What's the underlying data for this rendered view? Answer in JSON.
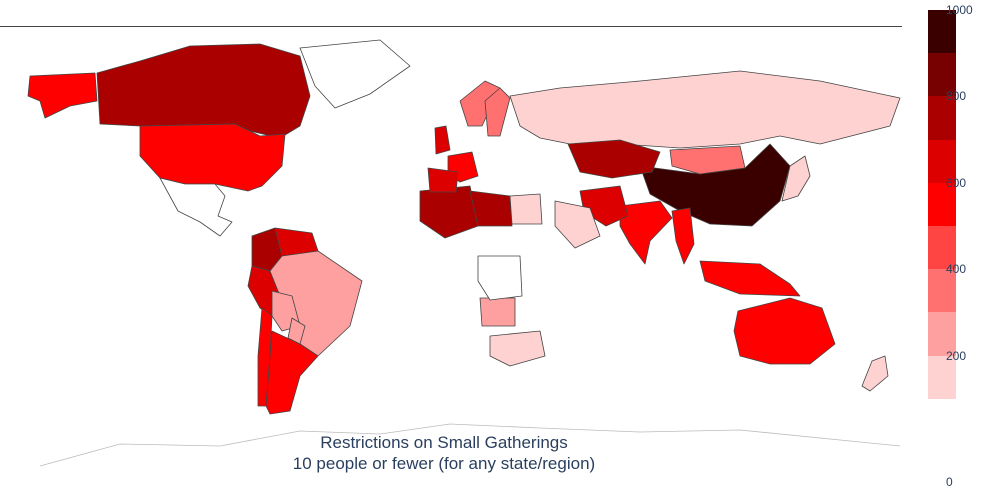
{
  "title": {
    "line1": "Restrictions on Small Gatherings",
    "line2": "10 people or fewer (for any state/region)"
  },
  "colorscale": {
    "range": [
      0,
      1000
    ],
    "ticks": [
      "0",
      "200",
      "400",
      "600",
      "800",
      "1000"
    ],
    "bins": [
      {
        "from": 100,
        "to": 200,
        "color": "#ffd2d2"
      },
      {
        "from": 200,
        "to": 300,
        "color": "#ffa0a0"
      },
      {
        "from": 300,
        "to": 400,
        "color": "#ff7070"
      },
      {
        "from": 400,
        "to": 500,
        "color": "#ff4444"
      },
      {
        "from": 500,
        "to": 600,
        "color": "#ff0000"
      },
      {
        "from": 600,
        "to": 700,
        "color": "#dd0000"
      },
      {
        "from": 700,
        "to": 800,
        "color": "#aa0000"
      },
      {
        "from": 800,
        "to": 900,
        "color": "#770000"
      },
      {
        "from": 900,
        "to": 1000,
        "color": "#3a0000"
      }
    ]
  },
  "map_data": {
    "projection": "equirectangular",
    "regions": [
      {
        "name": "Canada",
        "value": 750
      },
      {
        "name": "Alaska",
        "value": 550
      },
      {
        "name": "United States",
        "value": 550
      },
      {
        "name": "Greenland",
        "value": null
      },
      {
        "name": "Mexico",
        "value": null
      },
      {
        "name": "Colombia",
        "value": 750
      },
      {
        "name": "Venezuela",
        "value": 700
      },
      {
        "name": "Peru",
        "value": 700
      },
      {
        "name": "Brazil",
        "value": 250
      },
      {
        "name": "Bolivia",
        "value": 250
      },
      {
        "name": "Chile",
        "value": 550
      },
      {
        "name": "Argentina",
        "value": 550
      },
      {
        "name": "Paraguay",
        "value": 250
      },
      {
        "name": "Russia",
        "value": 150
      },
      {
        "name": "China",
        "value": 950
      },
      {
        "name": "Mongolia",
        "value": 350
      },
      {
        "name": "Kazakhstan",
        "value": 750
      },
      {
        "name": "India",
        "value": 550
      },
      {
        "name": "Iran",
        "value": 650
      },
      {
        "name": "Algeria",
        "value": 750
      },
      {
        "name": "Libya",
        "value": 750
      },
      {
        "name": "Egypt",
        "value": 150
      },
      {
        "name": "Saudi Arabia",
        "value": 150
      },
      {
        "name": "Australia",
        "value": 550
      },
      {
        "name": "Indonesia",
        "value": 550
      },
      {
        "name": "France",
        "value": 550
      },
      {
        "name": "Spain",
        "value": 650
      },
      {
        "name": "United Kingdom",
        "value": 650
      },
      {
        "name": "Norway",
        "value": 350
      },
      {
        "name": "Sweden",
        "value": 350
      },
      {
        "name": "Japan",
        "value": 150
      },
      {
        "name": "New Zealand",
        "value": 150
      },
      {
        "name": "South Africa",
        "value": 150
      },
      {
        "name": "Angola",
        "value": 250
      },
      {
        "name": "DR Congo",
        "value": null
      },
      {
        "name": "Myanmar",
        "value": 550
      }
    ]
  }
}
